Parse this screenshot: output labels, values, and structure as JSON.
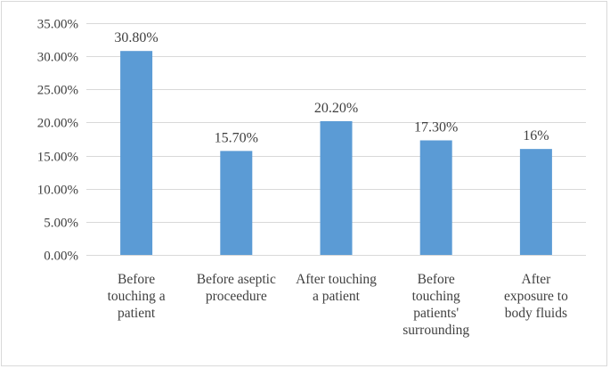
{
  "chart_data": {
    "type": "bar",
    "categories": [
      [
        "Before",
        "touching a",
        "patient"
      ],
      [
        "Before aseptic",
        "proceedure"
      ],
      [
        "After touching",
        "a patient"
      ],
      [
        "Before",
        "touching",
        "patients'",
        "surrounding"
      ],
      [
        "After",
        "exposure to",
        "body fluids"
      ]
    ],
    "values": [
      30.8,
      15.7,
      20.2,
      17.3,
      16
    ],
    "data_labels": [
      "30.80%",
      "15.70%",
      "20.20%",
      "17.30%",
      "16%"
    ],
    "y_ticks": [
      "0.00%",
      "5.00%",
      "10.00%",
      "15.00%",
      "20.00%",
      "25.00%",
      "30.00%",
      "35.00%"
    ],
    "ylim": [
      0,
      35
    ],
    "grid": true,
    "bar_color": "#5b9bd5",
    "grid_color": "#d9d9d9",
    "legend": "none"
  }
}
